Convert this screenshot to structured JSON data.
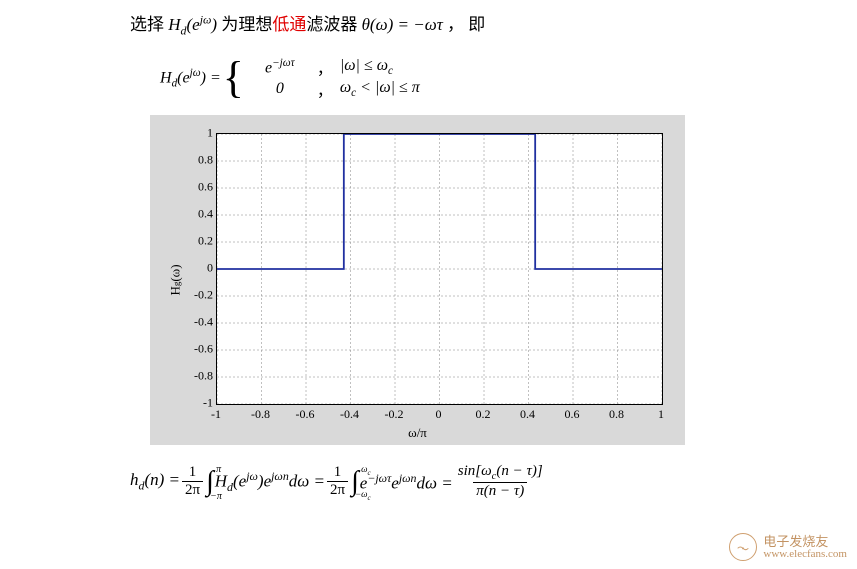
{
  "text": {
    "pre": "选择",
    "hd": "H",
    "hd_sub": "d",
    "arg_open": "(e",
    "arg_exp": "jω",
    "arg_close": ")",
    "mid": " 为理想",
    "red": "低通",
    "post": "滤波器 ",
    "theta": "θ(ω) = −ωτ",
    "tail": "  ，  即"
  },
  "piecewise": {
    "lhs_pre": "H",
    "lhs_sub": "d",
    "lhs_arg_open": "(e",
    "lhs_exp": "jω",
    "lhs_arg_close": ") = ",
    "row1_expr": "e",
    "row1_exp": "−jωτ",
    "row1_comma": "，",
    "row1_cond": "|ω| ≤ ω",
    "row1_cond_sub": "c",
    "row2_expr": "0",
    "row2_comma": "，",
    "row2_cond_pre": "ω",
    "row2_cond_sub": "c",
    "row2_cond_post": " < |ω| ≤ π"
  },
  "chart": {
    "type": "line",
    "ylabel": "H_g(ω)",
    "xlabel": "ω/π",
    "xlim": [
      -1,
      1
    ],
    "ylim": [
      -1,
      1
    ],
    "xticks": [
      -1,
      -0.8,
      -0.6,
      -0.4,
      -0.2,
      0,
      0.2,
      0.4,
      0.6,
      0.8,
      1
    ],
    "yticks": [
      -1,
      -0.8,
      -0.6,
      -0.4,
      -0.2,
      0,
      0.2,
      0.4,
      0.6,
      0.8,
      1
    ],
    "xtick_labels": [
      "-1",
      "-0.8",
      "-0.6",
      "-0.4",
      "-0.2",
      "0",
      "0.2",
      "0.4",
      "0.6",
      "0.8",
      "1"
    ],
    "ytick_labels": [
      "-1",
      "-0.8",
      "-0.6",
      "-0.4",
      "-0.2",
      "0",
      "0.2",
      "0.4",
      "0.6",
      "0.8",
      "1"
    ],
    "series": {
      "x": [
        -1,
        -0.43,
        -0.43,
        0.43,
        0.43,
        1
      ],
      "y": [
        0,
        0,
        1,
        1,
        0,
        0
      ]
    },
    "line_color": "#2030a0",
    "line_width": 1.8,
    "grid_color": "#808080",
    "grid_dash": "2,2",
    "background_color": "#ffffff",
    "panel_color": "#d9d9d9",
    "axis_color": "#000000",
    "tick_fontsize": 12,
    "label_fontsize": 13
  },
  "equation": {
    "hn": "h",
    "hn_sub": "d",
    "hn_arg": "(n) = ",
    "frac1_num": "1",
    "frac1_den": "2π",
    "int1_lb": "−π",
    "int1_ub": "π",
    "int1_body_pre": " H",
    "int1_body_sub": "d",
    "int1_body_arg_open": "(e",
    "int1_body_exp1": "jω",
    "int1_body_arg_close": ")e",
    "int1_body_exp2": "jωn",
    "int1_body_d": "dω = ",
    "frac2_num": "1",
    "frac2_den": "2π",
    "int2_lb": "−ω_c",
    "int2_ub": "ω_c",
    "int2_body_pre": " e",
    "int2_body_exp1": "−jωτ",
    "int2_body_mid": "e",
    "int2_body_exp2": "jωn",
    "int2_body_d": "dω = ",
    "rhs_num_pre": "sin[ω",
    "rhs_num_sub": "c",
    "rhs_num_post": "(n − τ)]",
    "rhs_den": "π(n − τ)"
  },
  "watermark": {
    "text": "电子发烧友",
    "url": "www.elecfans.com"
  }
}
